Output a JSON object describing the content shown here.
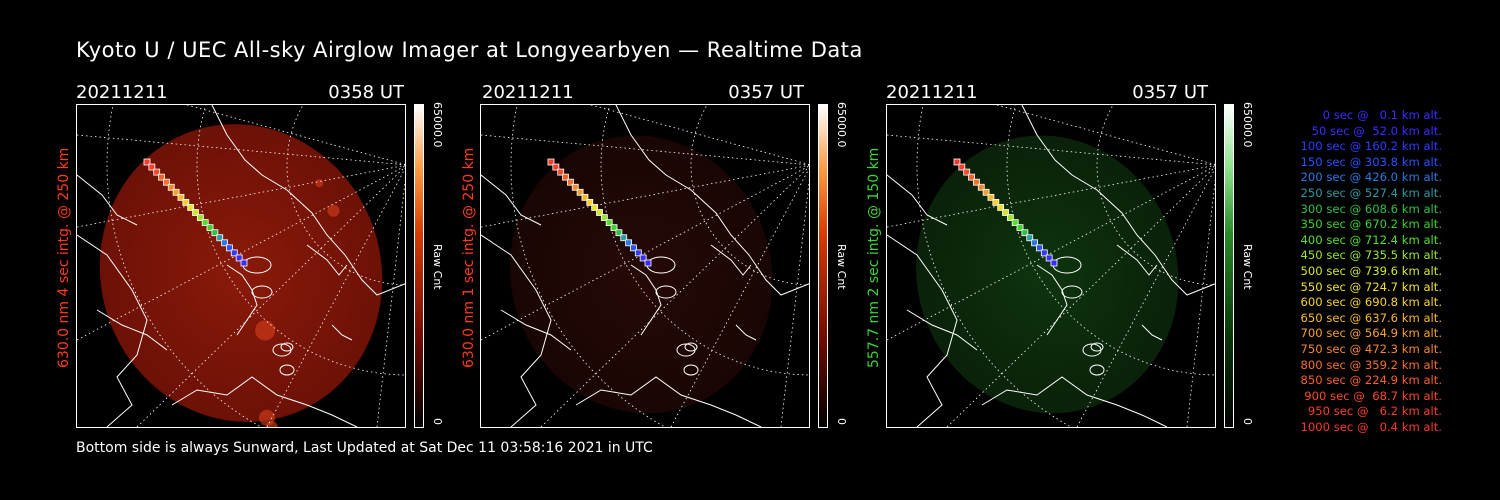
{
  "title": "Kyoto U / UEC All-sky Airglow Imager at Longyearbyen — Realtime Data",
  "footer": "Bottom side is always Sunward, Last Updated at Sat Dec 11 03:58:16 2021 in UTC",
  "panels": [
    {
      "date": "20211211",
      "time": "0358 UT",
      "ylabel": "630.0 nm 4 sec intg. @ 250 km",
      "ylabel_color": "#ff3b1a",
      "cbar_max": "65000.0",
      "cbar_min": "0",
      "cbar_unit": "Raw Cnt",
      "colormap": "red",
      "intensity": "bright"
    },
    {
      "date": "20211211",
      "time": "0357 UT",
      "ylabel": "630.0 nm 1 sec intg. @ 250 km",
      "ylabel_color": "#ff3b1a",
      "cbar_max": "65000.0",
      "cbar_min": "0",
      "cbar_unit": "Raw Cnt",
      "colormap": "red",
      "intensity": "dim"
    },
    {
      "date": "20211211",
      "time": "0357 UT",
      "ylabel": "557.7 nm 2 sec intg. @ 150 km",
      "ylabel_color": "#3bd43b",
      "cbar_max": "65000.0",
      "cbar_min": "0",
      "cbar_unit": "Raw Cnt",
      "colormap": "green",
      "intensity": "dim"
    }
  ],
  "legend": [
    {
      "text": "0 sec @   0.1 km alt.",
      "color": "#3a2cff"
    },
    {
      "text": "50 sec @  52.0 km alt.",
      "color": "#3a2cff"
    },
    {
      "text": "100 sec @ 160.2 km alt.",
      "color": "#2f3cff"
    },
    {
      "text": "150 sec @ 303.8 km alt.",
      "color": "#2a52ff"
    },
    {
      "text": "200 sec @ 426.0 km alt.",
      "color": "#2a78e6"
    },
    {
      "text": "250 sec @ 527.4 km alt.",
      "color": "#2a9aa6"
    },
    {
      "text": "300 sec @ 608.6 km alt.",
      "color": "#2fc04a"
    },
    {
      "text": "350 sec @ 670.2 km alt.",
      "color": "#3ad42a"
    },
    {
      "text": "400 sec @ 712.4 km alt.",
      "color": "#52e02a"
    },
    {
      "text": "450 sec @ 735.5 km alt.",
      "color": "#9ae62a"
    },
    {
      "text": "500 sec @ 739.6 km alt.",
      "color": "#d2e62a"
    },
    {
      "text": "550 sec @ 724.7 km alt.",
      "color": "#f0e02a"
    },
    {
      "text": "600 sec @ 690.8 km alt.",
      "color": "#f8d22a"
    },
    {
      "text": "650 sec @ 637.6 km alt.",
      "color": "#f8b82a"
    },
    {
      "text": "700 sec @ 564.9 km alt.",
      "color": "#f8a02a"
    },
    {
      "text": "750 sec @ 472.3 km alt.",
      "color": "#f8882a"
    },
    {
      "text": "800 sec @ 359.2 km alt.",
      "color": "#f8702a"
    },
    {
      "text": "850 sec @ 224.9 km alt.",
      "color": "#f8602a"
    },
    {
      "text": "900 sec @  68.7 km alt.",
      "color": "#f84a2a"
    },
    {
      "text": "950 sec @   6.2 km alt.",
      "color": "#f8402a"
    },
    {
      "text": "1000 sec @   0.4 km alt.",
      "color": "#f83a2a"
    }
  ]
}
